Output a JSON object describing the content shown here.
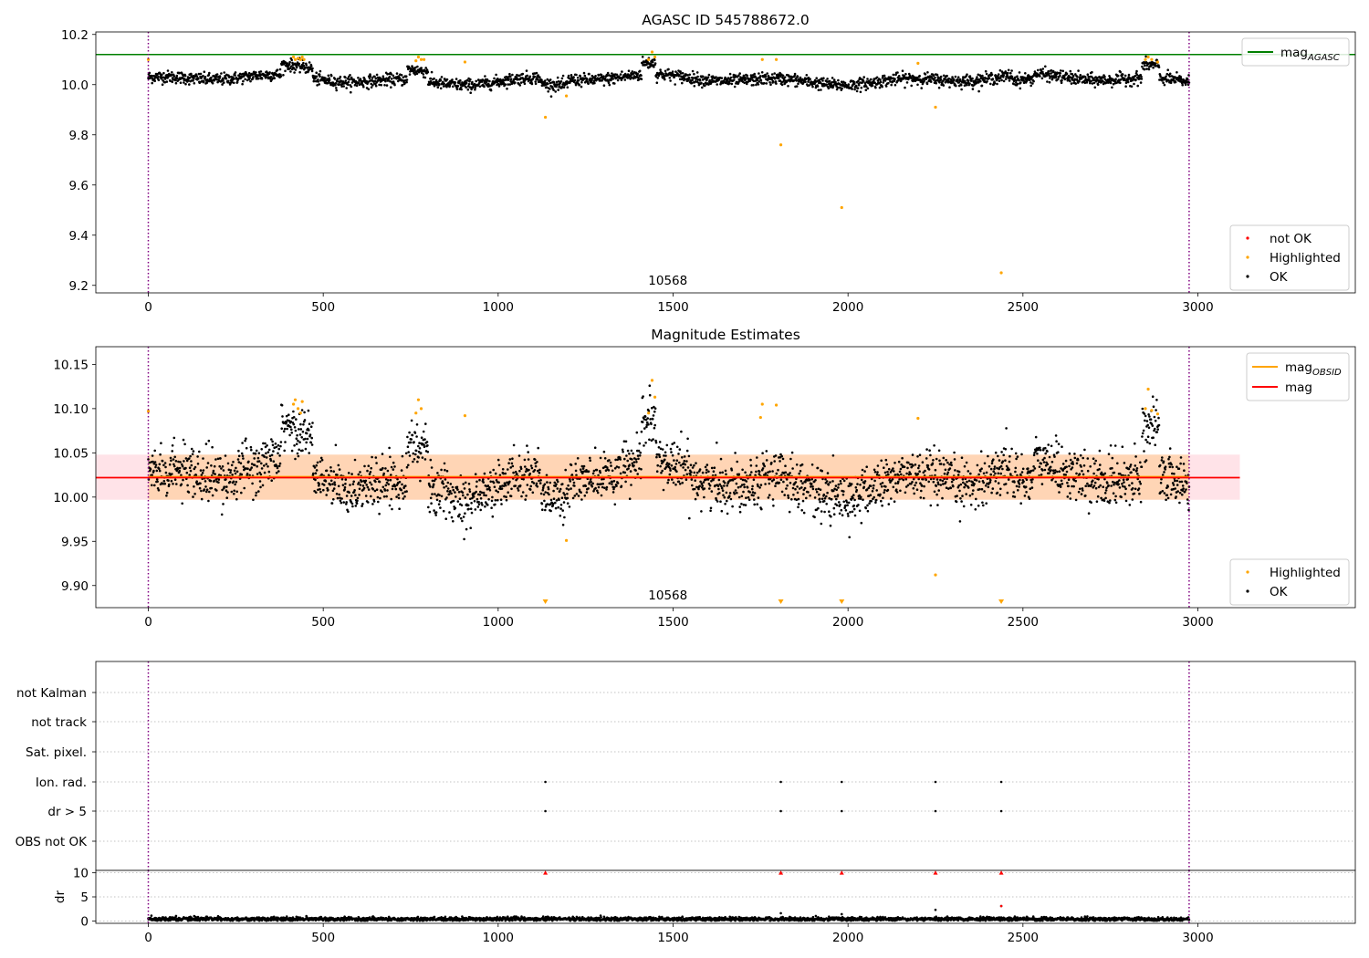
{
  "chart_data": [
    {
      "type": "scatter",
      "title": "AGASC ID 545788672.0",
      "xlim": [
        -150,
        3450
      ],
      "ylim": [
        9.17,
        10.21
      ],
      "xticks": [
        0,
        500,
        1000,
        1500,
        2000,
        2500,
        3000
      ],
      "yticks": [
        9.2,
        9.4,
        9.6,
        9.8,
        10.0,
        10.2
      ],
      "ytick_labels": [
        "9.2",
        "9.4",
        "9.6",
        "9.8",
        "10.0",
        "10.2"
      ],
      "obsid_label": "10568",
      "obsid_label_x": 1485,
      "vlines": [
        0,
        2975
      ],
      "hline": {
        "name": "mag",
        "subscript": "AGASC",
        "y": 10.12,
        "x_range": [
          -150,
          3450
        ],
        "color": "#008000"
      },
      "legend_lines": [
        {
          "name": "mag",
          "subscript": "AGASC",
          "color": "#008000"
        }
      ],
      "legend_points": [
        {
          "name": "not OK",
          "color": "#ff0000"
        },
        {
          "name": "Highlighted",
          "color": "#ffa500"
        },
        {
          "name": "OK",
          "color": "#000000"
        }
      ],
      "ok_points": {
        "x_range": [
          0,
          2975
        ],
        "count": 2700,
        "noise": 0.02,
        "color": "#000000"
      },
      "highlighted_points": [
        [
          0,
          10.1
        ],
        [
          415,
          10.11
        ],
        [
          420,
          10.1
        ],
        [
          428,
          10.105
        ],
        [
          435,
          10.1
        ],
        [
          440,
          10.11
        ],
        [
          445,
          10.1
        ],
        [
          765,
          10.095
        ],
        [
          772,
          10.11
        ],
        [
          780,
          10.1
        ],
        [
          788,
          10.1
        ],
        [
          905,
          10.09
        ],
        [
          1135,
          9.87
        ],
        [
          1195,
          9.955
        ],
        [
          1430,
          10.1
        ],
        [
          1440,
          10.13
        ],
        [
          1448,
          10.11
        ],
        [
          1755,
          10.1
        ],
        [
          1795,
          10.1
        ],
        [
          1808,
          9.76
        ],
        [
          1982,
          9.51
        ],
        [
          2200,
          10.085
        ],
        [
          2250,
          9.91
        ],
        [
          2438,
          9.25
        ],
        [
          2850,
          10.1
        ],
        [
          2858,
          10.11
        ],
        [
          2868,
          10.1
        ],
        [
          2885,
          10.09
        ]
      ],
      "notok_points": []
    },
    {
      "type": "scatter",
      "title": "Magnitude Estimates",
      "xlim": [
        -150,
        3450
      ],
      "ylim": [
        9.875,
        10.17
      ],
      "xticks": [
        0,
        500,
        1000,
        1500,
        2000,
        2500,
        3000
      ],
      "yticks": [
        9.9,
        9.95,
        10.0,
        10.05,
        10.1,
        10.15
      ],
      "ytick_labels": [
        "9.90",
        "9.95",
        "10.00",
        "10.05",
        "10.10",
        "10.15"
      ],
      "obsid_label": "10568",
      "obsid_label_x": 1485,
      "vlines": [
        0,
        2975
      ],
      "bands": [
        {
          "y_range": [
            9.997,
            10.048
          ],
          "x_range": [
            -150,
            3120
          ],
          "color": "#ffc0cb",
          "opacity": 0.45
        },
        {
          "y_range": [
            9.997,
            10.048
          ],
          "x_range": [
            0,
            2975
          ],
          "color": "#ffa500",
          "opacity": 0.22
        }
      ],
      "lines": [
        {
          "name": "mag",
          "subscript": "OBSID",
          "y": 10.023,
          "x_range": [
            0,
            2975
          ],
          "color": "#ffa500"
        },
        {
          "name": "mag",
          "subscript": "",
          "y": 10.022,
          "x_range": [
            -150,
            3120
          ],
          "color": "#ff0000"
        }
      ],
      "legend_lines": [
        {
          "name": "mag",
          "subscript": "OBSID",
          "color": "#ffa500"
        },
        {
          "name": "mag",
          "subscript": "",
          "color": "#ff0000"
        }
      ],
      "legend_points": [
        {
          "name": "Highlighted",
          "color": "#ffa500"
        },
        {
          "name": "OK",
          "color": "#000000"
        }
      ],
      "ok_points": {
        "x_range": [
          0,
          2975
        ],
        "count": 2700,
        "noise": 0.02,
        "color": "#000000"
      },
      "highlighted_points": [
        [
          0,
          10.097
        ],
        [
          415,
          10.105
        ],
        [
          420,
          10.11
        ],
        [
          428,
          10.1
        ],
        [
          435,
          10.095
        ],
        [
          440,
          10.108
        ],
        [
          772,
          10.11
        ],
        [
          765,
          10.095
        ],
        [
          780,
          10.1
        ],
        [
          905,
          10.092
        ],
        [
          1195,
          9.951
        ],
        [
          1440,
          10.132
        ],
        [
          1448,
          10.113
        ],
        [
          1430,
          10.095
        ],
        [
          1755,
          10.105
        ],
        [
          1750,
          10.09
        ],
        [
          1795,
          10.104
        ],
        [
          2200,
          10.089
        ],
        [
          2250,
          9.912
        ],
        [
          2850,
          10.1
        ],
        [
          2858,
          10.122
        ],
        [
          2868,
          10.098
        ],
        [
          2885,
          10.094
        ]
      ],
      "offscale_markers": [
        1135,
        1808,
        1982,
        2438
      ]
    },
    {
      "type": "scatter",
      "title": "",
      "xlim": [
        -150,
        3450
      ],
      "categories": [
        "not Kalman",
        "not track",
        "Sat. pixel.",
        "Ion. rad.",
        "dr > 5",
        "OBS not OK"
      ],
      "vlines": [
        0,
        2975
      ],
      "flag_points": [
        {
          "category": "Ion. rad.",
          "x": [
            1135,
            1808,
            1982,
            2250,
            2438
          ]
        },
        {
          "category": "dr > 5",
          "x": [
            1135,
            1808,
            1982,
            2250,
            2438
          ]
        }
      ]
    },
    {
      "type": "scatter",
      "title": "",
      "ylabel": "dr",
      "xlim": [
        -150,
        3450
      ],
      "ylim": [
        -0.5,
        10.5
      ],
      "xticks": [
        0,
        500,
        1000,
        1500,
        2000,
        2500,
        3000
      ],
      "yticks": [
        0,
        5,
        10
      ],
      "vlines": [
        0,
        2975
      ],
      "ok_points": {
        "x_range": [
          0,
          2975
        ],
        "count": 2700,
        "center": 0.4,
        "noise": 0.2,
        "color": "#000000"
      },
      "extra_points": [
        [
          1808,
          1.6
        ],
        [
          1982,
          1.4
        ],
        [
          2250,
          2.3
        ],
        [
          2438,
          3.1
        ]
      ],
      "clipped_markers": [
        1135,
        1808,
        1982,
        2250,
        2438
      ]
    }
  ]
}
